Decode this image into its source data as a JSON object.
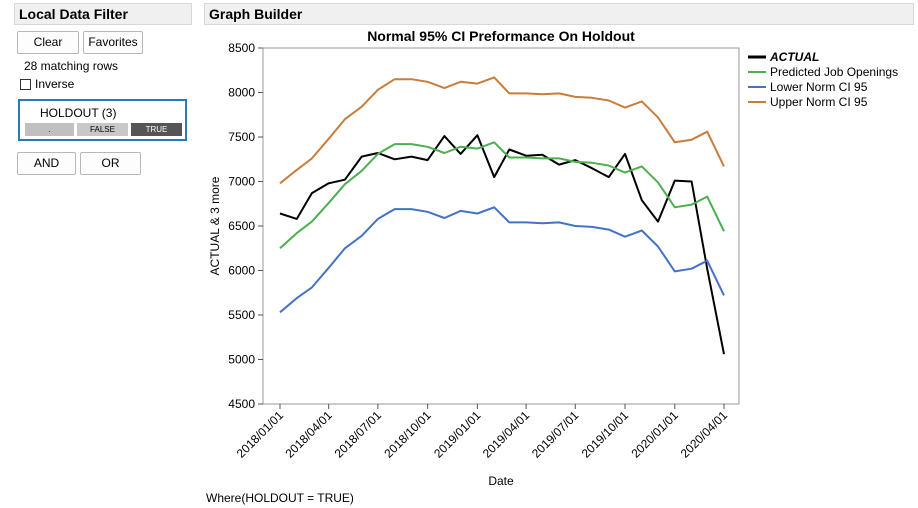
{
  "filter": {
    "title": "Local Data Filter",
    "clear_label": "Clear",
    "favorites_label": "Favorites",
    "matching_rows": "28 matching rows",
    "inverse_label": "Inverse",
    "holdout_title": "HOLDOUT (3)",
    "levels": [
      ".",
      "FALSE",
      "TRUE"
    ],
    "and_label": "AND",
    "or_label": "OR"
  },
  "graph_builder": {
    "title": "Graph Builder",
    "where_text": "Where(HOLDOUT = TRUE)"
  },
  "chart_data": {
    "type": "line",
    "title": "Normal 95% CI Preformance On Holdout",
    "xlabel": "Date",
    "ylabel": "ACTUAL & 3 more",
    "ylim": [
      4500,
      8500
    ],
    "yticks": [
      4500,
      5000,
      5500,
      6000,
      6500,
      7000,
      7500,
      8000,
      8500
    ],
    "xticks": [
      "2018/01/01",
      "2018/04/01",
      "2018/07/01",
      "2018/10/01",
      "2019/01/01",
      "2019/04/01",
      "2019/07/01",
      "2019/10/01",
      "2020/01/01",
      "2020/04/01"
    ],
    "x": [
      "2018/01/01",
      "2018/02/01",
      "2018/03/01",
      "2018/04/01",
      "2018/05/01",
      "2018/06/01",
      "2018/07/01",
      "2018/08/01",
      "2018/09/01",
      "2018/10/01",
      "2018/11/01",
      "2018/12/01",
      "2019/01/01",
      "2019/02/01",
      "2019/03/01",
      "2019/04/01",
      "2019/05/01",
      "2019/06/01",
      "2019/07/01",
      "2019/08/01",
      "2019/09/01",
      "2019/10/01",
      "2019/11/01",
      "2019/12/01",
      "2020/01/01",
      "2020/02/01",
      "2020/03/01",
      "2020/04/01"
    ],
    "legend_position": "right",
    "grid": false,
    "series": [
      {
        "name": "ACTUAL",
        "color": "#000000",
        "values": [
          6640,
          6580,
          6870,
          6980,
          7020,
          7280,
          7320,
          7250,
          7280,
          7240,
          7510,
          7310,
          7520,
          7050,
          7360,
          7290,
          7300,
          7190,
          7240,
          7150,
          7050,
          7310,
          6790,
          6550,
          7010,
          7000,
          6020,
          5060
        ]
      },
      {
        "name": "Predicted Job Openings",
        "color": "#4caf50",
        "values": [
          6250,
          6420,
          6550,
          6760,
          6970,
          7120,
          7310,
          7420,
          7420,
          7390,
          7320,
          7390,
          7370,
          7440,
          7270,
          7270,
          7260,
          7260,
          7220,
          7210,
          7180,
          7100,
          7170,
          6990,
          6710,
          6740,
          6830,
          6440
        ]
      },
      {
        "name": "Lower Norm CI 95",
        "color": "#4472c4",
        "values": [
          5530,
          5690,
          5810,
          6030,
          6250,
          6390,
          6580,
          6690,
          6690,
          6660,
          6590,
          6670,
          6640,
          6710,
          6540,
          6540,
          6530,
          6540,
          6500,
          6490,
          6460,
          6380,
          6450,
          6270,
          5990,
          6020,
          6110,
          5720
        ]
      },
      {
        "name": "Upper Norm CI 95",
        "color": "#c97d3a",
        "values": [
          6980,
          7130,
          7260,
          7480,
          7700,
          7840,
          8030,
          8150,
          8150,
          8120,
          8050,
          8120,
          8100,
          8170,
          7990,
          7990,
          7980,
          7990,
          7950,
          7940,
          7910,
          7830,
          7900,
          7720,
          7440,
          7470,
          7560,
          7170
        ]
      }
    ]
  }
}
